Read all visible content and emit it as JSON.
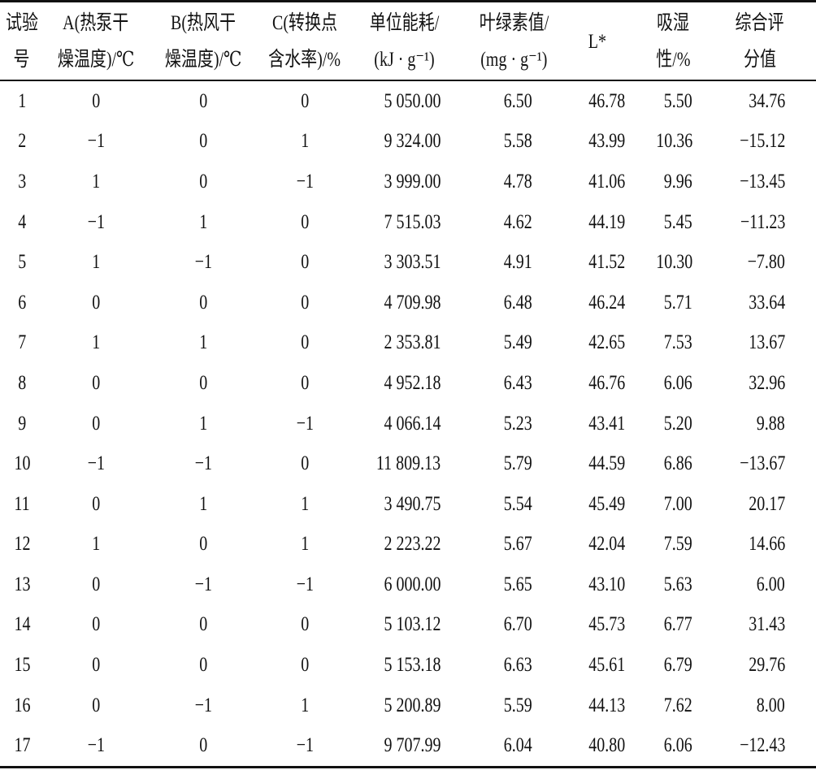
{
  "table": {
    "header": [
      [
        "试验",
        "号"
      ],
      [
        "A(热泵干",
        "燥温度)/℃"
      ],
      [
        "B(热风干",
        "燥温度)/℃"
      ],
      [
        "C(转换点",
        "含水率)/%"
      ],
      [
        "单位能耗/",
        "(kJ · g⁻¹)"
      ],
      [
        "叶绿素值/",
        "(mg · g⁻¹)"
      ],
      [
        "L*"
      ],
      [
        "吸湿",
        "性/%"
      ],
      [
        "综合评",
        "分值"
      ]
    ],
    "rows": [
      [
        "1",
        "0",
        "0",
        "0",
        "5 050.00",
        "6.50",
        "46.78",
        "5.50",
        "34.76"
      ],
      [
        "2",
        "−1",
        "0",
        "1",
        "9 324.00",
        "5.58",
        "43.99",
        "10.36",
        "−15.12"
      ],
      [
        "3",
        "1",
        "0",
        "−1",
        "3 999.00",
        "4.78",
        "41.06",
        "9.96",
        "−13.45"
      ],
      [
        "4",
        "−1",
        "1",
        "0",
        "7 515.03",
        "4.62",
        "44.19",
        "5.45",
        "−11.23"
      ],
      [
        "5",
        "1",
        "−1",
        "0",
        "3 303.51",
        "4.91",
        "41.52",
        "10.30",
        "−7.80"
      ],
      [
        "6",
        "0",
        "0",
        "0",
        "4 709.98",
        "6.48",
        "46.24",
        "5.71",
        "33.64"
      ],
      [
        "7",
        "1",
        "1",
        "0",
        "2 353.81",
        "5.49",
        "42.65",
        "7.53",
        "13.67"
      ],
      [
        "8",
        "0",
        "0",
        "0",
        "4 952.18",
        "6.43",
        "46.76",
        "6.06",
        "32.96"
      ],
      [
        "9",
        "0",
        "1",
        "−1",
        "4 066.14",
        "5.23",
        "43.41",
        "5.20",
        "9.88"
      ],
      [
        "10",
        "−1",
        "−1",
        "0",
        "11 809.13",
        "5.79",
        "44.59",
        "6.86",
        "−13.67"
      ],
      [
        "11",
        "0",
        "1",
        "1",
        "3 490.75",
        "5.54",
        "45.49",
        "7.00",
        "20.17"
      ],
      [
        "12",
        "1",
        "0",
        "1",
        "2 223.22",
        "5.67",
        "42.04",
        "7.59",
        "14.66"
      ],
      [
        "13",
        "0",
        "−1",
        "−1",
        "6 000.00",
        "5.65",
        "43.10",
        "5.63",
        "6.00"
      ],
      [
        "14",
        "0",
        "0",
        "0",
        "5 103.12",
        "6.70",
        "45.73",
        "6.77",
        "31.43"
      ],
      [
        "15",
        "0",
        "0",
        "0",
        "5 153.18",
        "6.63",
        "45.61",
        "6.79",
        "29.76"
      ],
      [
        "16",
        "0",
        "−1",
        "1",
        "5 200.89",
        "5.59",
        "44.13",
        "7.62",
        "8.00"
      ],
      [
        "17",
        "−1",
        "0",
        "−1",
        "9 707.99",
        "6.04",
        "40.80",
        "6.06",
        "−12.43"
      ]
    ]
  }
}
